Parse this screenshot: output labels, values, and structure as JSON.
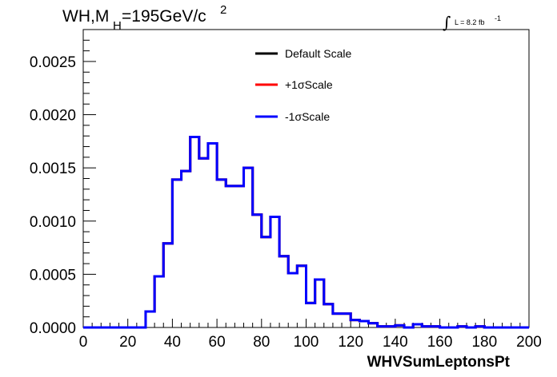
{
  "title": {
    "prefix": "WH,M",
    "subscript": "H",
    "value": "=195GeV/c",
    "superscript": "2"
  },
  "luminosity": {
    "symbol": "∫",
    "text": "L = 8.2 fb",
    "superscript": "-1"
  },
  "colors": {
    "default": "#000000",
    "plus": "#ff0000",
    "minus": "#0000ff",
    "frame": "#000000"
  },
  "chart_data": {
    "type": "line",
    "style": "histogram-step",
    "xlabel": "WHVSumLeptonsPt",
    "ylabel": "",
    "xlim": [
      0,
      200
    ],
    "ylim": [
      0,
      0.0028
    ],
    "x_ticks": [
      0,
      20,
      40,
      60,
      80,
      100,
      120,
      140,
      160,
      180,
      200
    ],
    "x_tick_labels": [
      "0",
      "20",
      "40",
      "60",
      "80",
      "100",
      "120",
      "140",
      "160",
      "180",
      "200"
    ],
    "y_ticks": [
      0,
      0.0005,
      0.001,
      0.0015,
      0.002,
      0.0025
    ],
    "y_tick_labels": [
      "0.0000",
      "0.0005",
      "0.0010",
      "0.0015",
      "0.0020",
      "0.0025"
    ],
    "grid": false,
    "legend_position": "top-center",
    "bin_edges": [
      0,
      4,
      8,
      12,
      16,
      20,
      24,
      28,
      32,
      36,
      40,
      44,
      48,
      52,
      56,
      60,
      64,
      68,
      72,
      76,
      80,
      84,
      88,
      92,
      96,
      100,
      104,
      108,
      112,
      116,
      120,
      124,
      128,
      132,
      136,
      140,
      144,
      148,
      152,
      156,
      160,
      164,
      168,
      172,
      176,
      180,
      184,
      188,
      192,
      196,
      200
    ],
    "series": [
      {
        "name": "Default Scale",
        "color": "#000000",
        "values": [
          0,
          0,
          0,
          0,
          0,
          0,
          0,
          0.00015,
          0.00048,
          0.00079,
          0.00139,
          0.00147,
          0.00179,
          0.00159,
          0.00173,
          0.00139,
          0.00133,
          0.00133,
          0.0015,
          0.00106,
          0.00085,
          0.00104,
          0.00067,
          0.00051,
          0.00058,
          0.00023,
          0.00045,
          0.00022,
          0.00013,
          0.00013,
          7e-05,
          6e-05,
          4e-05,
          1e-05,
          1e-05,
          2e-05,
          0,
          3e-05,
          1e-05,
          1e-05,
          0,
          0,
          1e-05,
          0,
          1e-05,
          0,
          0,
          0,
          0,
          0
        ]
      },
      {
        "name": "+1σScale",
        "color": "#ff0000",
        "values": [
          0,
          0,
          0,
          0,
          0,
          0,
          0,
          0.00015,
          0.00048,
          0.00079,
          0.00139,
          0.00147,
          0.00179,
          0.00159,
          0.00173,
          0.00139,
          0.00133,
          0.00133,
          0.0015,
          0.00106,
          0.00085,
          0.00104,
          0.00067,
          0.00051,
          0.00058,
          0.00023,
          0.00045,
          0.00022,
          0.00013,
          0.00013,
          7e-05,
          6e-05,
          4e-05,
          1e-05,
          1e-05,
          2e-05,
          0,
          3e-05,
          1e-05,
          1e-05,
          0,
          0,
          1e-05,
          0,
          1e-05,
          0,
          0,
          0,
          0,
          0
        ]
      },
      {
        "name": "-1σScale",
        "color": "#0000ff",
        "values": [
          0,
          0,
          0,
          0,
          0,
          0,
          0,
          0.00015,
          0.00048,
          0.00079,
          0.00139,
          0.00147,
          0.00179,
          0.00159,
          0.00173,
          0.00139,
          0.00133,
          0.00133,
          0.0015,
          0.00106,
          0.00085,
          0.00104,
          0.00067,
          0.00051,
          0.00058,
          0.00023,
          0.00045,
          0.00022,
          0.00013,
          0.00013,
          7e-05,
          6e-05,
          4e-05,
          1e-05,
          1e-05,
          2e-05,
          0,
          3e-05,
          1e-05,
          1e-05,
          0,
          0,
          1e-05,
          0,
          1e-05,
          0,
          0,
          0,
          0,
          0
        ]
      }
    ]
  }
}
